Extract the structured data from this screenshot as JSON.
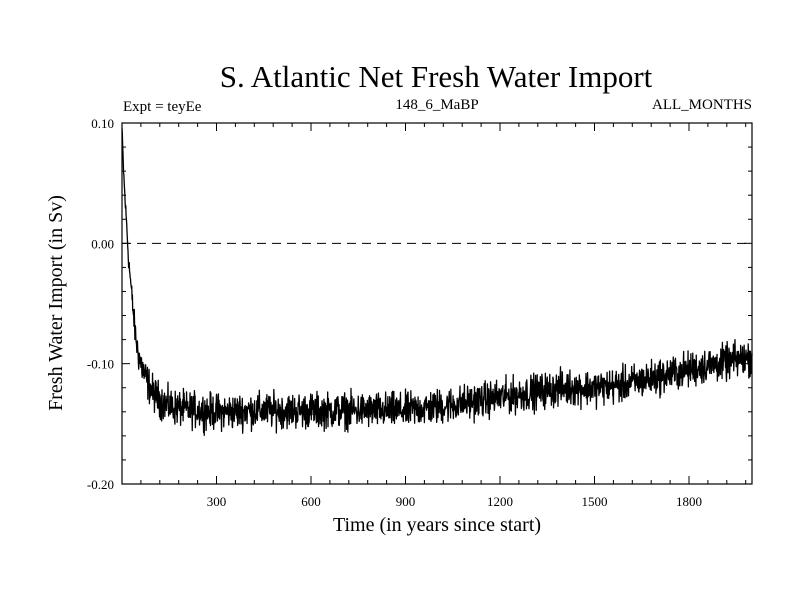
{
  "chart_data": {
    "type": "line",
    "title": "S. Atlantic Net Fresh Water Import",
    "left_label": "Expt = teyEe",
    "center_label": "148_6_MaBP",
    "right_label": "ALL_MONTHS",
    "xlabel": "Time (in years since start)",
    "ylabel": "Fresh Water Import (in Sv)",
    "xlim": [
      0,
      2000
    ],
    "ylim": [
      -0.2,
      0.1
    ],
    "x_ticks": [
      300,
      600,
      900,
      1200,
      1500,
      1800
    ],
    "x_tick_labels": [
      "300",
      "600",
      "900",
      "1200",
      "1500",
      "1800"
    ],
    "y_ticks": [
      0.1,
      0.0,
      -0.1,
      -0.2
    ],
    "y_tick_labels": [
      "0.10",
      "0.00",
      "-0.10",
      "-0.20"
    ],
    "reference_line": {
      "y": 0.0,
      "style": "dashed"
    },
    "series": [
      {
        "name": "Net fresh water import",
        "color": "#000000",
        "x": [
          0,
          5,
          10,
          15,
          20,
          30,
          40,
          50,
          60,
          70,
          80,
          90,
          100,
          120,
          140,
          160,
          180,
          200,
          250,
          300,
          350,
          400,
          450,
          500,
          550,
          600,
          650,
          700,
          750,
          800,
          850,
          900,
          950,
          1000,
          1050,
          1100,
          1150,
          1200,
          1250,
          1300,
          1350,
          1400,
          1450,
          1500,
          1550,
          1600,
          1650,
          1700,
          1750,
          1800,
          1850,
          1900,
          1950,
          2000
        ],
        "y": [
          0.095,
          0.06,
          0.035,
          0.015,
          -0.01,
          -0.04,
          -0.07,
          -0.09,
          -0.1,
          -0.108,
          -0.115,
          -0.12,
          -0.125,
          -0.13,
          -0.134,
          -0.136,
          -0.137,
          -0.138,
          -0.139,
          -0.14,
          -0.14,
          -0.139,
          -0.139,
          -0.139,
          -0.139,
          -0.139,
          -0.139,
          -0.139,
          -0.139,
          -0.139,
          -0.139,
          -0.139,
          -0.137,
          -0.136,
          -0.134,
          -0.132,
          -0.13,
          -0.128,
          -0.126,
          -0.124,
          -0.122,
          -0.12,
          -0.12,
          -0.12,
          -0.119,
          -0.117,
          -0.114,
          -0.111,
          -0.108,
          -0.105,
          -0.102,
          -0.1,
          -0.097,
          -0.095
        ]
      }
    ],
    "noise_amplitude": 0.011
  }
}
